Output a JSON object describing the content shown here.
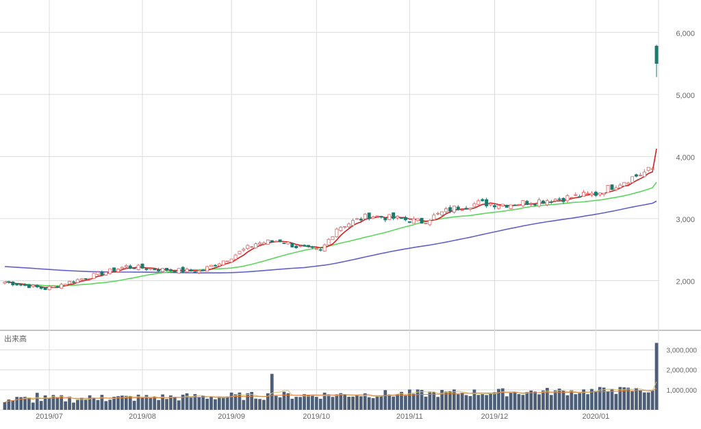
{
  "chart_data": [
    {
      "type": "candlestick",
      "title": "",
      "ylim": [
        1200,
        6500
      ],
      "y_ticks": [
        "2,000",
        "3,000",
        "4,000",
        "5,000",
        "6,000"
      ],
      "y_tick_values": [
        2000,
        3000,
        4000,
        5000,
        6000
      ],
      "colors": {
        "up": "#e06060",
        "down": "#1a7a6e",
        "ma_short": "#d22020",
        "ma_mid": "#5cd65c",
        "ma_long": "#6060c8"
      },
      "moving_averages": [
        {
          "key": "ma_short"
        },
        {
          "key": "ma_mid"
        },
        {
          "key": "ma_long"
        }
      ],
      "long_ma_start": 2230
    },
    {
      "type": "bar",
      "title": "出来高",
      "ylim": [
        0,
        3500000
      ],
      "y_ticks": [
        "1,000,000",
        "2,000,000",
        "3,000,000"
      ],
      "y_tick_values": [
        1000000,
        2000000,
        3000000
      ],
      "bar_color": "#4d5f78",
      "x_ticks": [
        "2019/07",
        "2019/08",
        "2019/09",
        "2019/10",
        "2019/11",
        "2019/12",
        "2020/01"
      ],
      "x_tick_dates": [
        "2019-07-01",
        "2019-08-01",
        "2019-09-02",
        "2019-10-01",
        "2019-11-01",
        "2019-12-02",
        "2020-01-06"
      ]
    }
  ]
}
